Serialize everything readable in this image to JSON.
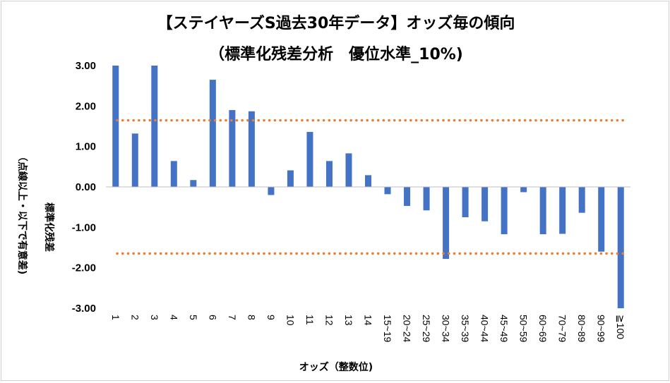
{
  "chart_data": {
    "type": "bar",
    "title_line1": "【ステイヤーズS過去30年データ】オッズ毎の傾向",
    "title_line2": "（標準化残差分析　優位水準_10%)",
    "xlabel": "オッズ（整数位)",
    "ylabel": "標準化残差",
    "ylabel_note": "（点線以上・以下で有意差)",
    "ylim": [
      -3.0,
      3.0
    ],
    "yticks": [
      3.0,
      2.0,
      1.0,
      0.0,
      -1.0,
      -2.0,
      -3.0
    ],
    "ytick_labels": [
      "3.00",
      "2.00",
      "1.00",
      "0.00",
      "-1.00",
      "-2.00",
      "-3.00"
    ],
    "categories": [
      "1",
      "2",
      "3",
      "4",
      "5",
      "6",
      "7",
      "8",
      "9",
      "10",
      "11",
      "12",
      "13",
      "14",
      "15~19",
      "20~24",
      "25~29",
      "30~34",
      "35~39",
      "40~44",
      "45~49",
      "50~59",
      "60~69",
      "70~79",
      "80~89",
      "90~99",
      "≧100"
    ],
    "values": [
      3.0,
      1.32,
      3.0,
      0.64,
      0.17,
      2.65,
      1.9,
      1.87,
      -0.2,
      0.41,
      1.36,
      0.64,
      0.83,
      0.29,
      -0.18,
      -0.47,
      -0.58,
      -1.78,
      -0.75,
      -0.85,
      -1.17,
      -0.13,
      -1.17,
      -1.16,
      -0.64,
      -1.6,
      -3.0
    ],
    "threshold_upper": 1.645,
    "threshold_lower": -1.645,
    "bar_color": "#4472C4",
    "threshold_color": "#ED7D31",
    "grid": false
  }
}
